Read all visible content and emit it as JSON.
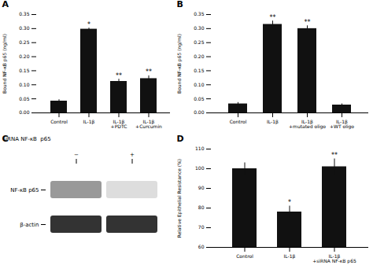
{
  "chart_data": [
    {
      "type": "bar",
      "title": "A",
      "categories": [
        "Control",
        "IL-1β",
        "IL-1β\n+PDTC",
        "IL-1β\n+Curcumin"
      ],
      "values": [
        0.042,
        0.298,
        0.112,
        0.122
      ],
      "errors": [
        0.005,
        0.004,
        0.008,
        0.01
      ],
      "ylabel": "Bound NF-κB p65 (ng/ml)",
      "ylim": [
        0.0,
        0.35
      ],
      "yticks": [
        {
          "value": 0.0,
          "label": "0.00"
        },
        0.05,
        {
          "value": 0.1,
          "label": "0.10"
        },
        0.15,
        {
          "value": 0.2,
          "label": "0.20"
        },
        0.25,
        {
          "value": 0.3,
          "label": "0.30"
        },
        0.35
      ],
      "annotations": [
        null,
        "*",
        "**",
        "**"
      ],
      "color": "#111111"
    },
    {
      "type": "bar",
      "title": "B",
      "categories": [
        "Control",
        "IL-1β",
        "IL-1β\n+mutated oligo",
        "IL-1β\n+WT oligo"
      ],
      "values": [
        0.032,
        0.315,
        0.3,
        0.028
      ],
      "errors": [
        0.005,
        0.012,
        0.01,
        0.004
      ],
      "ylabel": "Bound NF-κB p65 (ng/ml)",
      "ylim": [
        0.0,
        0.35
      ],
      "yticks": [
        {
          "value": 0.0,
          "label": "0.00"
        },
        0.05,
        {
          "value": 0.1,
          "label": "0.10"
        },
        0.15,
        {
          "value": 0.2,
          "label": "0.20"
        },
        0.25,
        {
          "value": 0.3,
          "label": "0.30"
        },
        0.35
      ],
      "annotations": [
        null,
        "**",
        "**",
        null
      ],
      "color": "#111111"
    },
    {
      "type": "blot",
      "title": "C",
      "xlabel": "siRNA NF-κB  p65",
      "categories": [
        "−",
        "+"
      ],
      "series": [
        {
          "name": "NF-κB p65",
          "colors": [
            "#999999",
            "#dddddd"
          ]
        },
        {
          "name": "β-actin",
          "colors": [
            "#333333",
            "#333333"
          ]
        }
      ]
    },
    {
      "type": "bar",
      "title": "D",
      "categories": [
        "Control",
        "IL-1β",
        "IL-1β\n+siRNA NF-κB p65"
      ],
      "values": [
        100,
        78,
        101
      ],
      "errors": [
        3,
        3,
        4
      ],
      "ylabel": "Relative Epithelial Resistance (%)",
      "ylim": [
        60,
        110
      ],
      "yticks": [
        60,
        70,
        80,
        90,
        100,
        110
      ],
      "annotations": [
        null,
        "*",
        "**"
      ],
      "color": "#111111"
    }
  ]
}
